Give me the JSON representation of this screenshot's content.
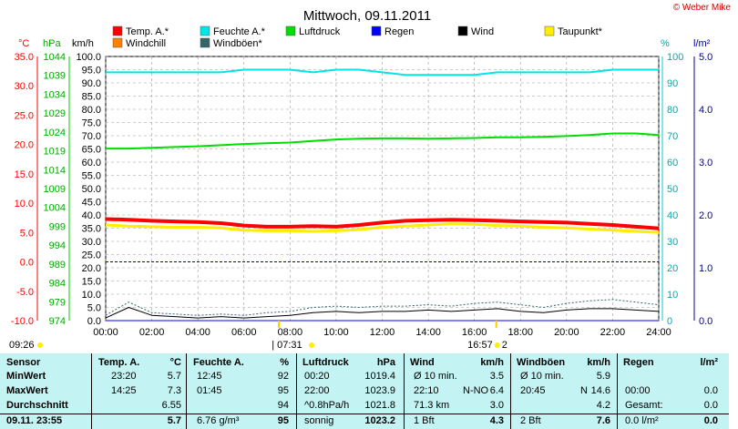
{
  "header": {
    "title": "Mittwoch, 09.11.2011",
    "copyright": "© Weber Mike"
  },
  "legend": [
    {
      "label": "Temp. A.*",
      "color": "#ff0000"
    },
    {
      "label": "Feuchte A.*",
      "color": "#00e5e5"
    },
    {
      "label": "Luftdruck",
      "color": "#00dd00"
    },
    {
      "label": "Regen",
      "color": "#0000ff"
    },
    {
      "label": "Wind",
      "color": "#000000"
    },
    {
      "label": "Taupunkt*",
      "color": "#ffee00"
    },
    {
      "label": "Windchill",
      "color": "#ff8000"
    },
    {
      "label": "Windböen*",
      "color": "#336666"
    }
  ],
  "axis_units": {
    "temp": "°C",
    "pressure": "hPa",
    "wind": "km/h",
    "humidity": "%",
    "rain": "l/m²"
  },
  "axis_ticks": {
    "temp": [
      "35.0",
      "30.0",
      "25.0",
      "20.0",
      "15.0",
      "10.0",
      "5.0",
      "0.0",
      "-5.0",
      "-10.0"
    ],
    "pressure": [
      "1044",
      "1039",
      "1034",
      "1029",
      "1024",
      "1019",
      "1014",
      "1009",
      "1004",
      "999",
      "994",
      "989",
      "984",
      "979",
      "974"
    ],
    "wind": [
      "100.0",
      "95.0",
      "90.0",
      "85.0",
      "80.0",
      "75.0",
      "70.0",
      "65.0",
      "60.0",
      "55.0",
      "50.0",
      "45.0",
      "40.0",
      "35.0",
      "30.0",
      "25.0",
      "20.0",
      "15.0",
      "10.0",
      "5.0",
      "0.0"
    ],
    "humidity": [
      "100",
      "90",
      "80",
      "70",
      "60",
      "50",
      "40",
      "30",
      "20",
      "10",
      "0"
    ],
    "rain": [
      "5.0",
      "4.0",
      "3.0",
      "2.0",
      "1.0",
      "0.0"
    ],
    "time": [
      "00:00",
      "02:00",
      "04:00",
      "06:00",
      "08:00",
      "10:00",
      "12:00",
      "14:00",
      "16:00",
      "18:00",
      "20:00",
      "22:00",
      "24:00"
    ]
  },
  "markers": {
    "left_time": "09:26",
    "sunrise": "07:31",
    "sunset": "16:57",
    "sunrise_prefix": "|",
    "sunset_suffix": "2"
  },
  "chart_data": {
    "type": "line",
    "title": "Mittwoch, 09.11.2011",
    "x": [
      "00:00",
      "01:00",
      "02:00",
      "03:00",
      "04:00",
      "05:00",
      "06:00",
      "07:00",
      "08:00",
      "09:00",
      "10:00",
      "11:00",
      "12:00",
      "13:00",
      "14:00",
      "15:00",
      "16:00",
      "17:00",
      "18:00",
      "19:00",
      "20:00",
      "21:00",
      "22:00",
      "23:00",
      "24:00"
    ],
    "xlim": [
      "00:00",
      "24:00"
    ],
    "series": [
      {
        "name": "Temp. A.*",
        "axis": "temp",
        "ylim": [
          -10,
          35
        ],
        "values": [
          7.3,
          7.2,
          7.0,
          6.9,
          6.8,
          6.6,
          6.2,
          6.0,
          6.0,
          6.1,
          6.0,
          6.3,
          6.7,
          7.0,
          7.1,
          7.2,
          7.1,
          7.0,
          6.9,
          6.8,
          6.7,
          6.5,
          6.3,
          6.0,
          5.7
        ]
      },
      {
        "name": "Taupunkt*",
        "axis": "temp",
        "ylim": [
          -10,
          35
        ],
        "values": [
          6.3,
          6.1,
          6.0,
          5.9,
          5.9,
          5.8,
          5.4,
          5.3,
          5.3,
          5.2,
          5.3,
          5.5,
          5.9,
          6.1,
          6.3,
          6.5,
          6.4,
          6.2,
          6.1,
          5.9,
          5.8,
          5.6,
          5.4,
          5.2,
          5.0
        ]
      },
      {
        "name": "Feuchte A.*",
        "axis": "humidity",
        "ylim": [
          0,
          100
        ],
        "values": [
          94,
          94,
          94,
          94,
          94,
          94,
          95,
          95,
          95,
          94,
          95,
          95,
          94,
          93,
          93,
          93,
          93,
          94,
          94,
          94,
          94,
          94,
          95,
          95,
          95
        ]
      },
      {
        "name": "Luftdruck",
        "axis": "pressure",
        "ylim": [
          974,
          1044
        ],
        "values": [
          1019.6,
          1019.6,
          1019.8,
          1020.0,
          1020.2,
          1020.5,
          1020.8,
          1021.0,
          1021.2,
          1021.6,
          1022.0,
          1022.2,
          1022.3,
          1022.3,
          1022.2,
          1022.3,
          1022.4,
          1022.6,
          1022.6,
          1022.7,
          1022.9,
          1023.2,
          1023.6,
          1023.6,
          1023.2
        ]
      },
      {
        "name": "Wind",
        "axis": "wind",
        "ylim": [
          0,
          100
        ],
        "values": [
          1.0,
          5.0,
          2.0,
          1.5,
          1.0,
          1.5,
          1.0,
          1.5,
          2.0,
          3.0,
          3.5,
          3.0,
          3.5,
          3.5,
          4.0,
          3.5,
          4.0,
          4.5,
          3.5,
          3.0,
          4.0,
          4.5,
          4.5,
          4.0,
          3.5
        ]
      },
      {
        "name": "Windböen*",
        "axis": "wind",
        "ylim": [
          0,
          100
        ],
        "values": [
          2.0,
          7.0,
          3.0,
          2.5,
          2.0,
          2.5,
          2.0,
          3.0,
          3.5,
          5.0,
          5.5,
          5.0,
          5.5,
          5.5,
          6.0,
          5.5,
          6.5,
          7.0,
          6.0,
          5.0,
          6.5,
          7.5,
          8.0,
          7.0,
          6.0
        ]
      },
      {
        "name": "Regen",
        "axis": "rain",
        "ylim": [
          0,
          5
        ],
        "values": [
          0,
          0,
          0,
          0,
          0,
          0,
          0,
          0,
          0,
          0,
          0,
          0,
          0,
          0,
          0,
          0,
          0,
          0,
          0,
          0,
          0,
          0,
          0,
          0,
          0
        ]
      },
      {
        "name": "Windchill",
        "axis": "temp",
        "ylim": [
          -10,
          35
        ],
        "values": [
          7.3,
          7.2,
          7.0,
          6.9,
          6.8,
          6.6,
          6.2,
          6.0,
          6.0,
          6.1,
          6.0,
          6.3,
          6.7,
          7.0,
          7.1,
          7.2,
          7.1,
          7.0,
          6.9,
          6.8,
          6.7,
          6.5,
          6.3,
          6.0,
          5.7
        ]
      }
    ],
    "reference_line": {
      "label": "0.0",
      "axis": "temp",
      "value": 0.0,
      "color": "#0000aa"
    },
    "grid": true
  },
  "summary": {
    "headers": [
      "Sensor",
      "Temp. A.",
      "°C",
      "Feuchte A.",
      "%",
      "Luftdruck",
      "hPa",
      "Wind",
      "km/h",
      "Windböen",
      "km/h",
      "Regen",
      "l/m²"
    ],
    "rows": [
      {
        "label": "MinWert",
        "temp_time": "23:20",
        "temp_val": "5.7",
        "hum_time": "12:45",
        "hum_val": "92",
        "press_time": "00:20",
        "press_val": "1019.4",
        "wind_desc": "Ø 10 min.",
        "wind_val": "3.5",
        "gust_desc": "Ø 10 min.",
        "gust_val": "5.9",
        "rain_desc": "",
        "rain_val": ""
      },
      {
        "label": "MaxWert",
        "temp_time": "14:25",
        "temp_val": "7.3",
        "hum_time": "01:45",
        "hum_val": "95",
        "press_time": "22:00",
        "press_val": "1023.9",
        "wind_desc": "22:10",
        "wind_mid": "N-NO",
        "wind_val": "6.4",
        "gust_desc": "20:45",
        "gust_mid": "N",
        "gust_val": "14.6",
        "rain_desc": "00:00",
        "rain_val": "0.0"
      },
      {
        "label": "Durchschnitt",
        "temp_time": "",
        "temp_val": "6.55",
        "hum_time": "",
        "hum_val": "94",
        "press_time": "^0.8hPa/h",
        "press_val": "1021.8",
        "wind_desc": "71.3 km",
        "wind_val": "3.0",
        "gust_desc": "",
        "gust_val": "4.2",
        "rain_desc": "Gesamt:",
        "rain_val": "0.0"
      },
      {
        "label": "09.11. 23:55",
        "temp_time": "",
        "temp_val": "5.7",
        "hum_time": "6.76 g/m³",
        "hum_val": "95",
        "press_time": "sonnig",
        "press_val": "1023.2",
        "wind_desc": "1 Bft",
        "wind_val": "4.3",
        "gust_desc": "2 Bft",
        "gust_val": "7.6",
        "rain_desc": "0.0 l/m²",
        "rain_val": "0.0"
      }
    ]
  }
}
